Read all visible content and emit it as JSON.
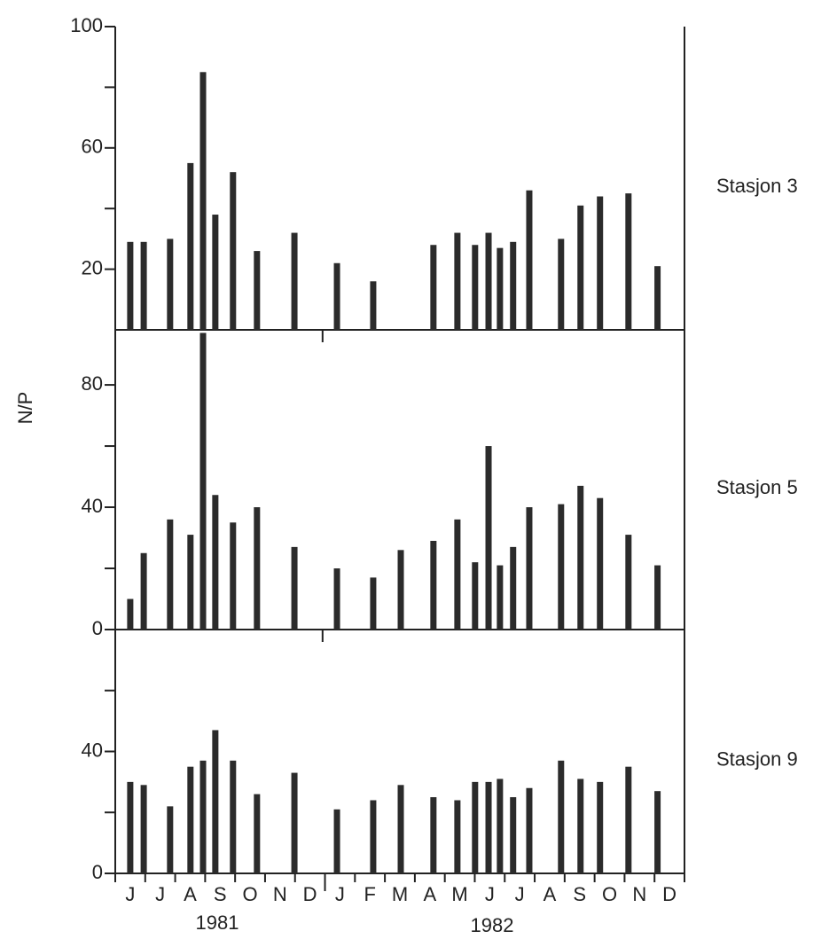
{
  "chart_data": [
    {
      "type": "bar",
      "label": "Stasjon 3",
      "color": "#2b2b2b",
      "x": [
        0.5,
        0.95,
        1.83,
        2.51,
        2.93,
        3.34,
        3.93,
        4.73,
        5.98,
        7.4,
        8.61,
        10.62,
        11.42,
        12.01,
        12.46,
        12.84,
        13.28,
        13.82,
        14.88,
        15.53,
        16.18,
        17.13,
        18.1
      ],
      "values": [
        29,
        29,
        30,
        55,
        85,
        38,
        52,
        26,
        32,
        22,
        16,
        28,
        32,
        28,
        32,
        27,
        29,
        46,
        30,
        41,
        44,
        45,
        21
      ],
      "ylim": [
        0,
        100
      ],
      "yticks": [
        20,
        60,
        100
      ],
      "minor_yticks": [
        40,
        80
      ]
    },
    {
      "type": "bar",
      "label": "Stasjon 5",
      "ylabel": "N/P",
      "color": "#2b2b2b",
      "x": [
        0.5,
        0.95,
        1.83,
        2.51,
        2.93,
        3.34,
        3.93,
        4.73,
        5.98,
        7.4,
        8.61,
        9.53,
        10.62,
        11.42,
        12.01,
        12.46,
        12.84,
        13.28,
        13.82,
        14.88,
        15.53,
        16.18,
        17.13,
        18.1
      ],
      "values": [
        10,
        25,
        36,
        31,
        97,
        44,
        35,
        40,
        27,
        20,
        17,
        26,
        29,
        36,
        22,
        60,
        21,
        27,
        40,
        41,
        47,
        43,
        31,
        21
      ],
      "ylim": [
        0,
        98
      ],
      "yticks": [
        0,
        40,
        80
      ],
      "minor_yticks": [
        20,
        60
      ]
    },
    {
      "type": "bar",
      "label": "Stasjon 9",
      "color": "#2b2b2b",
      "x": [
        0.5,
        0.95,
        1.83,
        2.51,
        2.93,
        3.34,
        3.93,
        4.73,
        5.98,
        7.4,
        8.61,
        9.53,
        10.62,
        11.42,
        12.01,
        12.46,
        12.84,
        13.28,
        13.82,
        14.88,
        15.53,
        16.18,
        17.13,
        18.1
      ],
      "values": [
        30,
        29,
        22,
        35,
        37,
        47,
        37,
        26,
        33,
        21,
        24,
        29,
        25,
        24,
        30,
        30,
        31,
        25,
        28,
        37,
        31,
        30,
        35,
        27
      ],
      "ylim": [
        0,
        80
      ],
      "yticks": [
        0,
        40
      ],
      "minor_yticks": [
        20,
        60
      ],
      "xlim": [
        0,
        19
      ],
      "months": [
        "J",
        "J",
        "A",
        "S",
        "O",
        "N",
        "D",
        "J",
        "F",
        "M",
        "A",
        "M",
        "J",
        "J",
        "A",
        "S",
        "O",
        "N",
        "D"
      ],
      "years": [
        "1981",
        "1982"
      ]
    }
  ]
}
